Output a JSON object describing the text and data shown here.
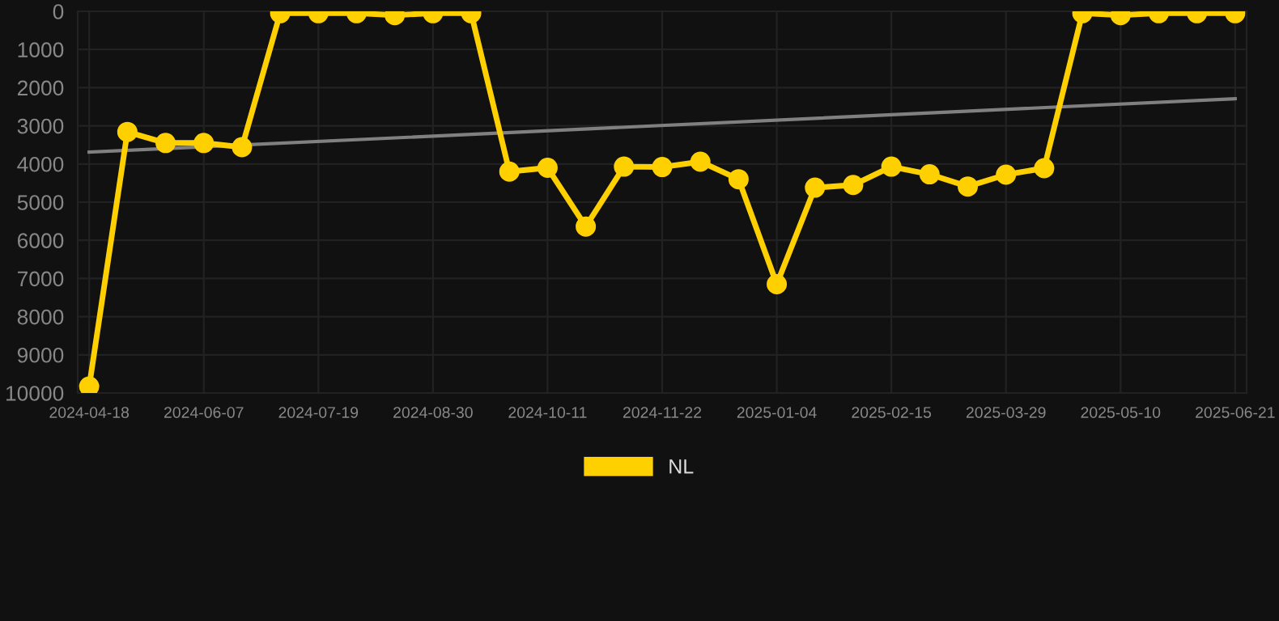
{
  "chart_data": {
    "type": "line",
    "categories": [
      "2024-04-18",
      null,
      null,
      "2024-06-07",
      null,
      null,
      "2024-07-19",
      null,
      null,
      "2024-08-30",
      null,
      null,
      "2024-10-11",
      null,
      null,
      "2024-11-22",
      null,
      null,
      "2025-01-04",
      null,
      null,
      "2025-02-15",
      null,
      null,
      "2025-03-29",
      null,
      null,
      "2025-05-10",
      null,
      null,
      "2025-06-21"
    ],
    "series": [
      {
        "name": "NL",
        "color": "#ffd000",
        "marker": "circle",
        "values": [
          9830,
          3160,
          3450,
          3450,
          3560,
          50,
          50,
          50,
          100,
          50,
          50,
          4200,
          4100,
          5640,
          4070,
          4080,
          3940,
          4400,
          7150,
          4620,
          4550,
          4070,
          4270,
          4590,
          4280,
          4110,
          50,
          100,
          50,
          50,
          50
        ]
      },
      {
        "type": "line",
        "color": "#808080",
        "marker": "none",
        "values": [
          3690,
          null,
          null,
          null,
          null,
          null,
          null,
          null,
          null,
          null,
          null,
          null,
          null,
          null,
          null,
          null,
          null,
          null,
          null,
          null,
          null,
          null,
          null,
          null,
          null,
          null,
          null,
          null,
          null,
          null,
          2290
        ]
      }
    ],
    "ylim": [
      10000,
      0
    ],
    "yticks": [
      0,
      1000,
      2000,
      3000,
      4000,
      5000,
      6000,
      7000,
      8000,
      9000,
      10000
    ],
    "grid": true,
    "legend": "bottom"
  }
}
